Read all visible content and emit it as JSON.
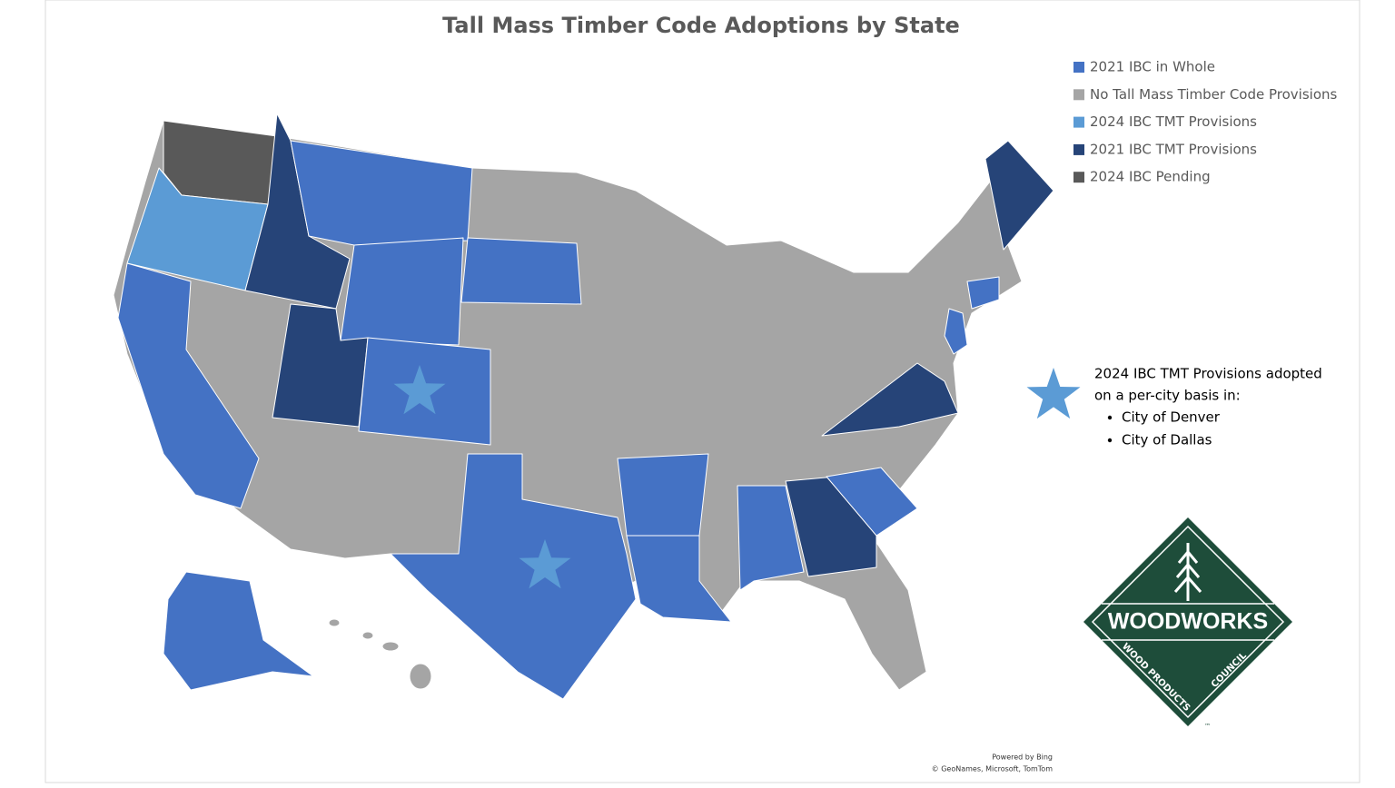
{
  "title": "Tall Mass Timber Code Adoptions by State",
  "legend": {
    "items": [
      {
        "label": "2021 IBC in Whole",
        "color": "#4472c4"
      },
      {
        "label": "No Tall Mass Timber Code Provisions",
        "color": "#a5a5a5"
      },
      {
        "label": "2024 IBC TMT Provisions",
        "color": "#5b9bd5"
      },
      {
        "label": "2021 IBC TMT Provisions",
        "color": "#264478"
      },
      {
        "label": "2024 IBC Pending",
        "color": "#595959"
      }
    ]
  },
  "note": {
    "lines": [
      "2024 IBC TMT Provisions adopted",
      "on a per-city basis in:"
    ],
    "cities": [
      "City of Denver",
      "City of Dallas"
    ]
  },
  "logo": {
    "name": "WOODWORKS",
    "subtitle_left": "WOOD PRODUCTS",
    "subtitle_right": "COUNCIL",
    "mark": "™"
  },
  "credits": {
    "line1": "Powered by Bing",
    "line2": "© GeoNames, Microsoft, TomTom"
  }
}
